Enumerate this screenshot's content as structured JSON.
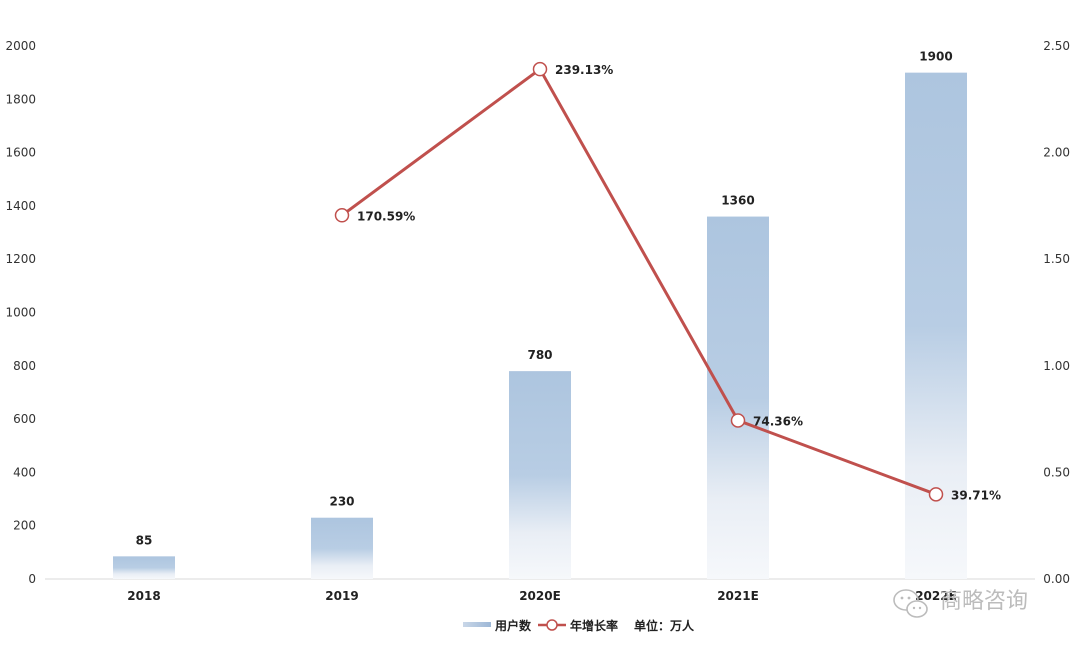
{
  "chart_data": {
    "type": "bar",
    "categories": [
      "2018",
      "2019",
      "2020E",
      "2021E",
      "2022E"
    ],
    "series": [
      {
        "name": "用户数",
        "type": "bar",
        "axis": "left",
        "color": "#adc5df",
        "values": [
          85,
          230,
          780,
          1360,
          1900
        ],
        "labels": [
          "85",
          "230",
          "780",
          "1360",
          "1900"
        ]
      },
      {
        "name": "年增长率",
        "type": "line",
        "axis": "right",
        "color": "#c0504d",
        "values": [
          null,
          1.7059,
          2.3913,
          0.7436,
          0.3971
        ],
        "labels": [
          "",
          "170.59%",
          "239.13%",
          "74.36%",
          "39.71%"
        ]
      }
    ],
    "y_left": {
      "min": 0,
      "max": 2000,
      "ticks": [
        "0",
        "200",
        "400",
        "600",
        "800",
        "1000",
        "1200",
        "1400",
        "1600",
        "1800",
        "2000"
      ]
    },
    "y_right": {
      "min": 0,
      "max": 2.5,
      "ticks": [
        "0.00",
        "0.50",
        "1.00",
        "1.50",
        "2.00",
        "2.50"
      ]
    },
    "legend": {
      "position": "bottom",
      "items": [
        "用户数",
        "年增长率"
      ],
      "unit_note": "单位：万人"
    },
    "grid": false
  },
  "watermark": {
    "text": "商略咨询",
    "icon": "wechat-icon"
  }
}
